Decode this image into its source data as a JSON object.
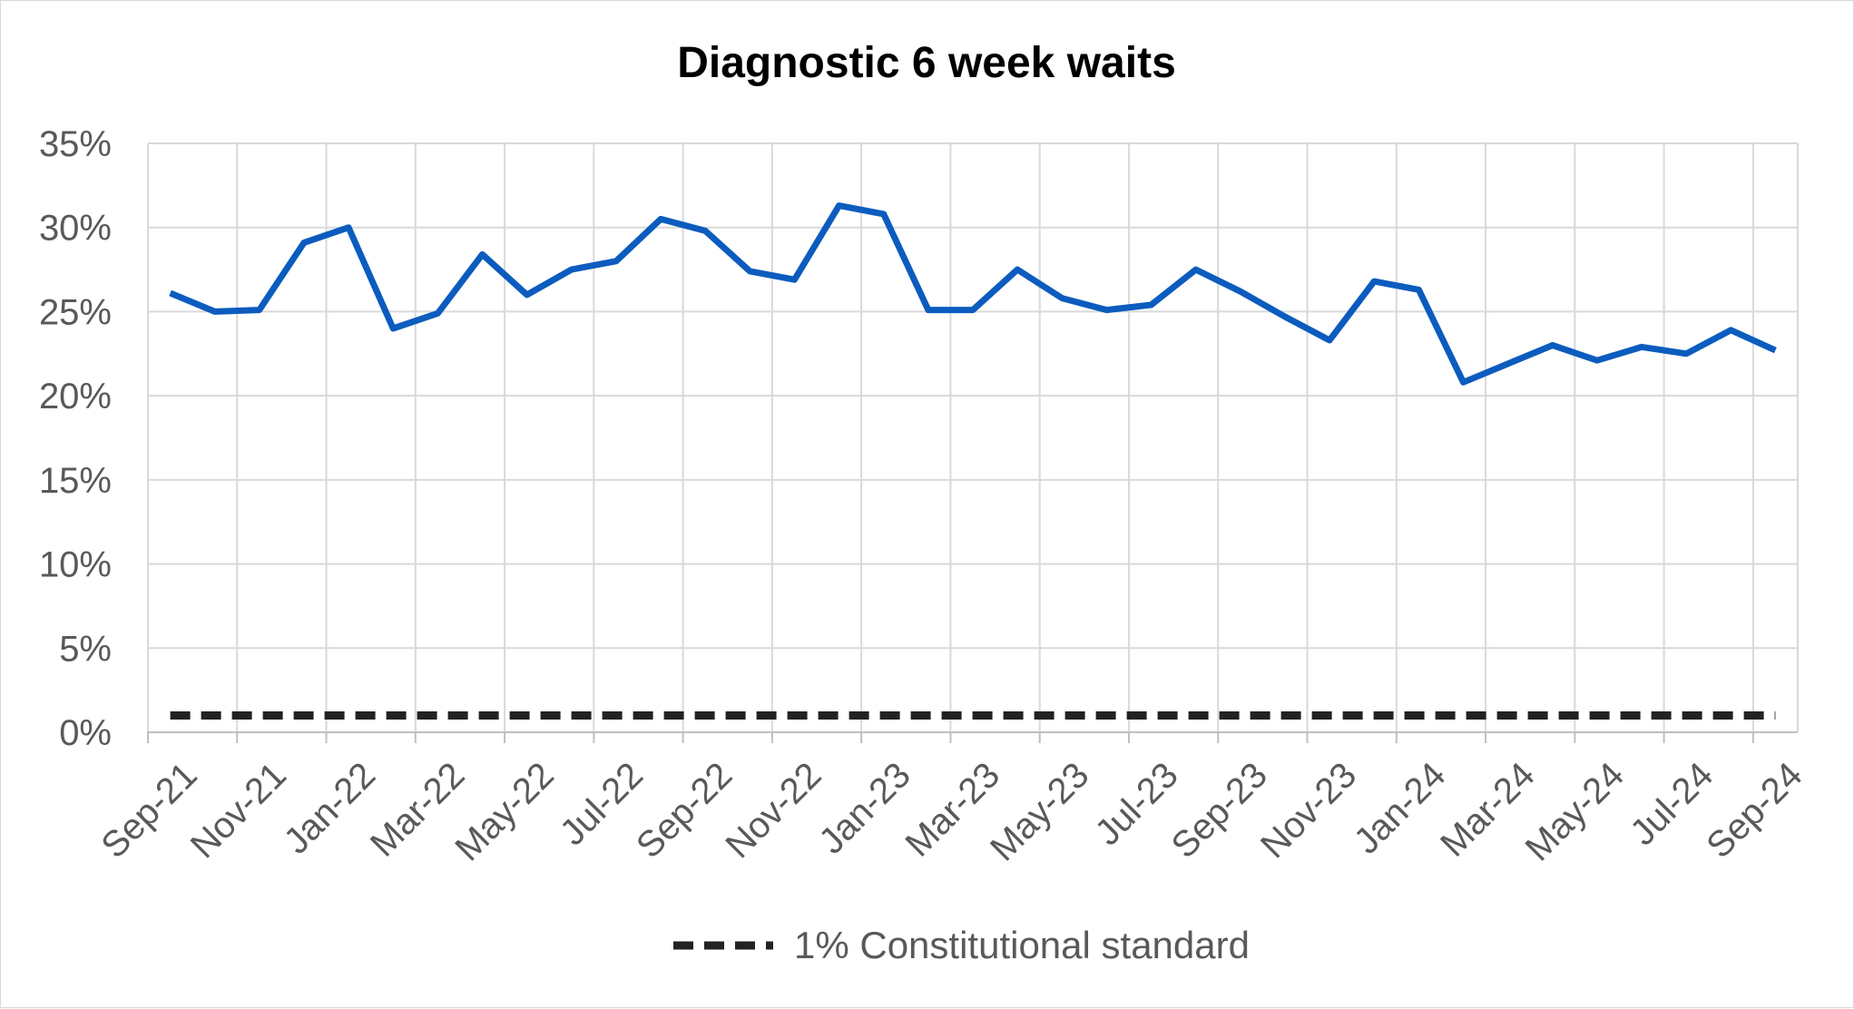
{
  "chart_data": {
    "type": "line",
    "title": "Diagnostic 6 week waits",
    "xlabel": "",
    "ylabel": "",
    "ylim": [
      0,
      35
    ],
    "yticks": [
      0,
      5,
      10,
      15,
      20,
      25,
      30,
      35
    ],
    "ytick_labels": [
      "0%",
      "5%",
      "10%",
      "15%",
      "20%",
      "25%",
      "30%",
      "35%"
    ],
    "y_unit": "%",
    "grid": true,
    "legend_placement": "bottom",
    "x": [
      "Sep-21",
      "Oct-21",
      "Nov-21",
      "Dec-21",
      "Jan-22",
      "Feb-22",
      "Mar-22",
      "Apr-22",
      "May-22",
      "Jun-22",
      "Jul-22",
      "Aug-22",
      "Sep-22",
      "Oct-22",
      "Nov-22",
      "Dec-22",
      "Jan-23",
      "Feb-23",
      "Mar-23",
      "Apr-23",
      "May-23",
      "Jun-23",
      "Jul-23",
      "Aug-23",
      "Sep-23",
      "Oct-23",
      "Nov-23",
      "Dec-23",
      "Jan-24",
      "Feb-24",
      "Mar-24",
      "Apr-24",
      "May-24",
      "Jun-24",
      "Jul-24",
      "Aug-24",
      "Sep-24"
    ],
    "xtick_labels": [
      "Sep-21",
      "Nov-21",
      "Jan-22",
      "Mar-22",
      "May-22",
      "Jul-22",
      "Sep-22",
      "Nov-22",
      "Jan-23",
      "Mar-23",
      "May-23",
      "Jul-23",
      "Sep-23",
      "Nov-23",
      "Jan-24",
      "Mar-24",
      "May-24",
      "Jul-24",
      "Sep-24"
    ],
    "series": [
      {
        "name": "",
        "color": "#0b5cbe",
        "style": "solid",
        "values": [
          26.1,
          25.0,
          25.1,
          29.1,
          30.0,
          24.0,
          24.9,
          28.4,
          26.0,
          27.5,
          28.0,
          30.5,
          29.8,
          27.4,
          26.9,
          31.3,
          30.8,
          25.1,
          25.1,
          27.5,
          25.8,
          25.1,
          25.4,
          27.5,
          26.2,
          24.7,
          23.3,
          26.8,
          26.3,
          20.8,
          21.9,
          23.0,
          22.1,
          22.9,
          22.5,
          23.9,
          22.7
        ]
      },
      {
        "name": "1% Constitutional standard",
        "color": "#222222",
        "style": "dashed",
        "values": [
          1,
          1,
          1,
          1,
          1,
          1,
          1,
          1,
          1,
          1,
          1,
          1,
          1,
          1,
          1,
          1,
          1,
          1,
          1,
          1,
          1,
          1,
          1,
          1,
          1,
          1,
          1,
          1,
          1,
          1,
          1,
          1,
          1,
          1,
          1,
          1,
          1
        ]
      }
    ]
  }
}
